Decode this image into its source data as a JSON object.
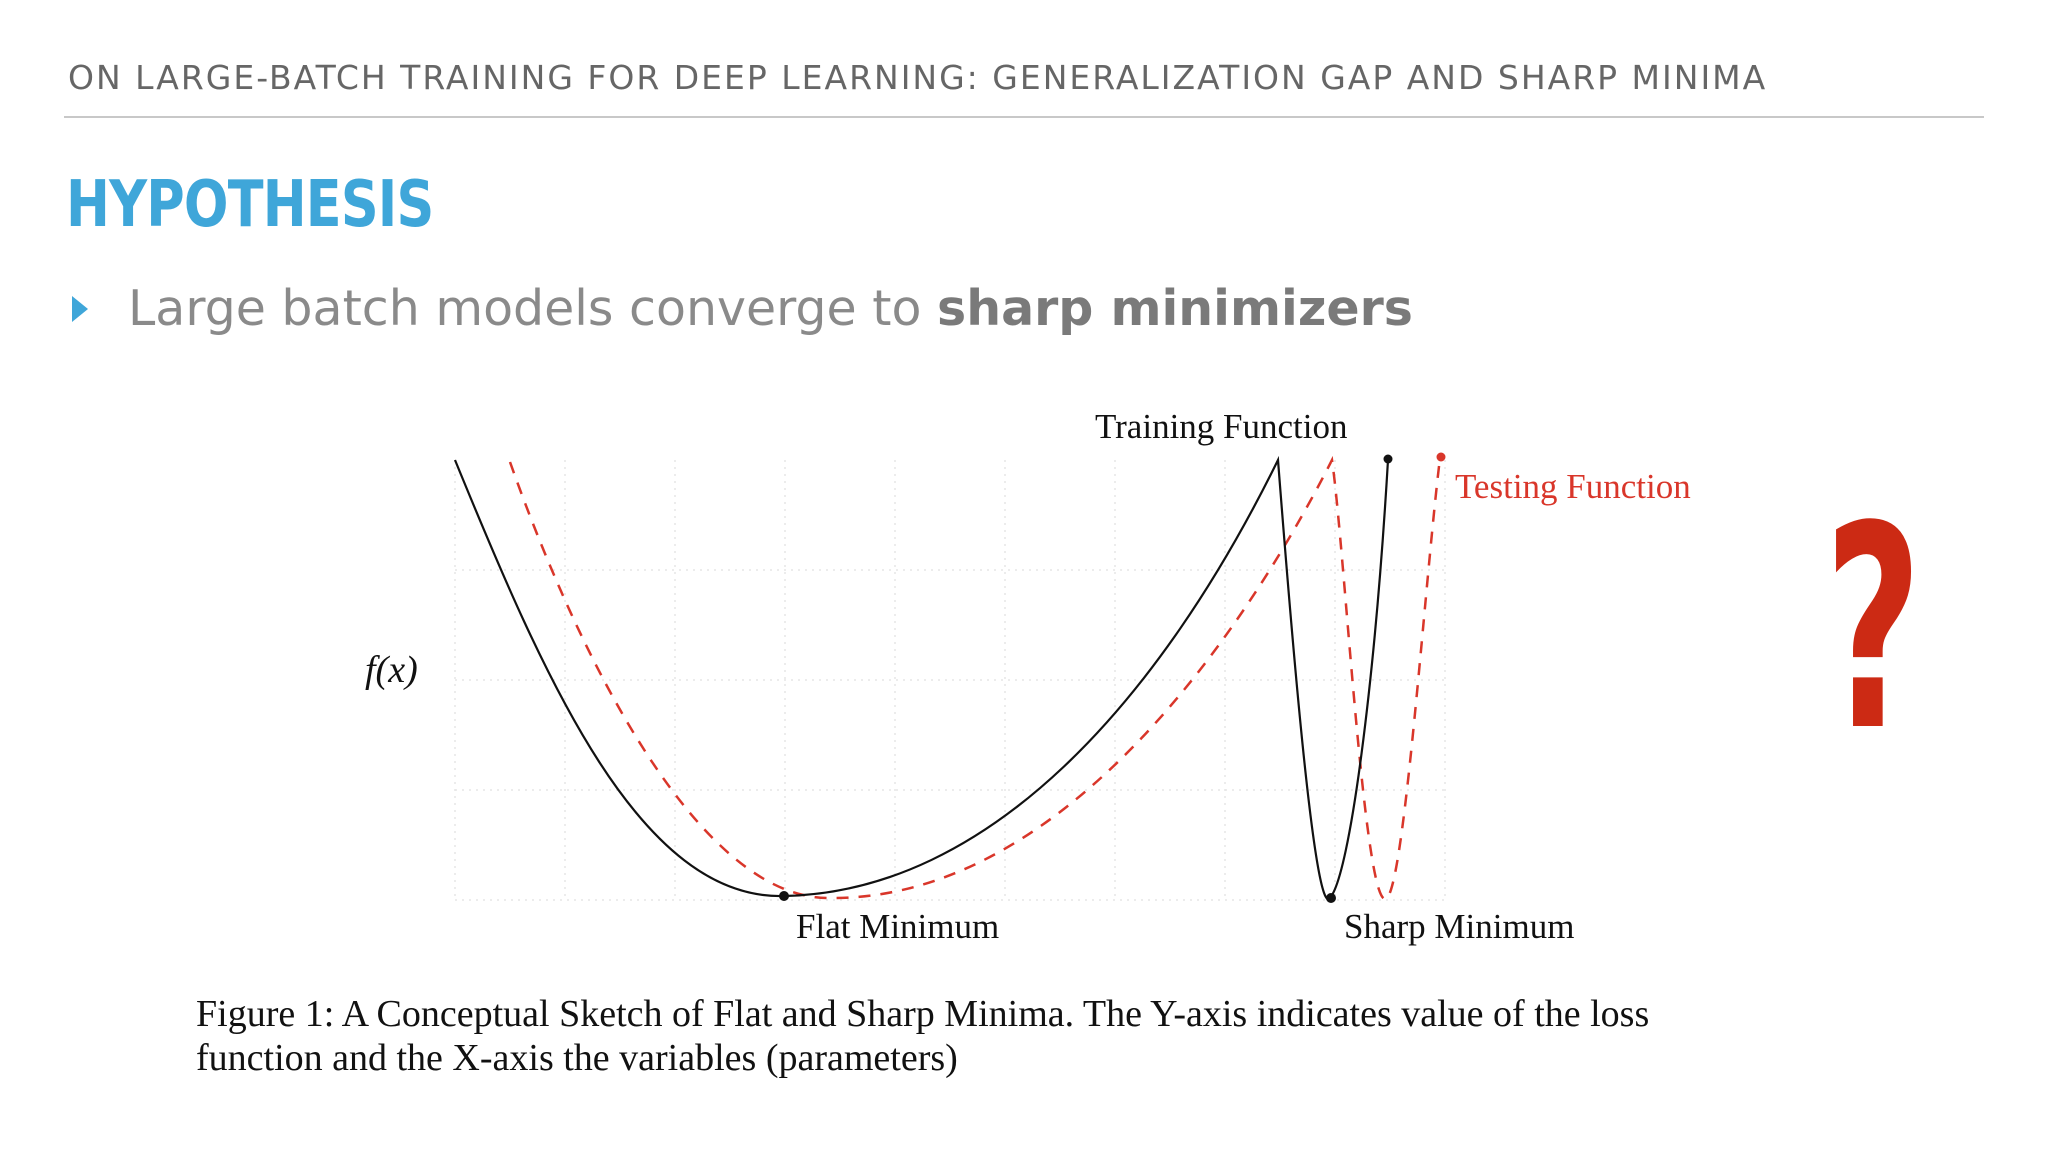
{
  "header": {
    "title": "ON LARGE-BATCH TRAINING FOR DEEP LEARNING: GENERALIZATION GAP AND SHARP MINIMA"
  },
  "slide": {
    "title": "HYPOTHESIS",
    "bullet": {
      "normal": "Large batch models converge to ",
      "bold": "sharp minimizers"
    }
  },
  "figure": {
    "y_label": "f(x)",
    "training_label": "Training Function",
    "testing_label": "Testing Function",
    "flat_min_label": "Flat Minimum",
    "sharp_min_label": "Sharp Minimum",
    "caption_line1": "Figure 1:  A Conceptual Sketch of Flat and Sharp Minima.  The Y-axis indicates value of the loss",
    "caption_line2": "function and the X-axis the variables (parameters)",
    "colors": {
      "training": "#111111",
      "testing": "#d9362a"
    }
  },
  "annotation": {
    "question_mark": "?",
    "color": "#cc2a14"
  }
}
